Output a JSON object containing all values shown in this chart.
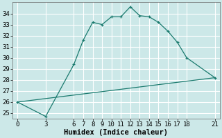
{
  "xlabel": "Humidex (Indice chaleur)",
  "background_color": "#cce8e8",
  "line_color": "#1a7a6e",
  "grid_color": "#ffffff",
  "curve1_x": [
    0,
    3,
    6,
    7,
    8,
    9,
    10,
    11,
    12,
    13,
    14,
    15,
    16,
    17,
    18,
    21
  ],
  "curve1_y": [
    26.0,
    24.7,
    29.4,
    31.6,
    33.2,
    33.0,
    33.7,
    33.7,
    34.6,
    33.8,
    33.7,
    33.2,
    32.4,
    31.4,
    30.0,
    28.2
  ],
  "curve2_x": [
    0,
    21
  ],
  "curve2_y": [
    26.0,
    28.2
  ],
  "xticks": [
    0,
    3,
    6,
    7,
    8,
    9,
    10,
    11,
    12,
    13,
    14,
    15,
    16,
    17,
    18,
    21
  ],
  "yticks": [
    25,
    26,
    27,
    28,
    29,
    30,
    31,
    32,
    33,
    34
  ],
  "xlim": [
    -0.5,
    21.5
  ],
  "ylim": [
    24.5,
    35.0
  ],
  "tick_fontsize": 6.5,
  "label_fontsize": 7.5
}
